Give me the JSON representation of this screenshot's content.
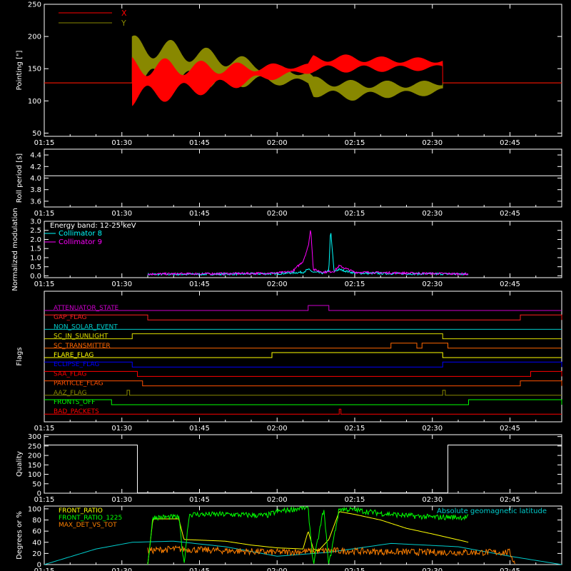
{
  "chart_data": [
    {
      "type": "line",
      "panel": "pointing",
      "ylabel": "Pointing [\"]",
      "ylim": [
        45,
        250
      ],
      "yticks": [
        50,
        100,
        150,
        200,
        250
      ],
      "xticks": [
        "01:15",
        "01:30",
        "01:45",
        "02:00",
        "02:15",
        "02:30",
        "02:45"
      ],
      "xlim_minutes": [
        75,
        166
      ],
      "legend": "top-left",
      "series": [
        {
          "name": "X",
          "color": "#ff0000",
          "baseline": 128,
          "x": [
            "01:15",
            "01:32",
            "01:40",
            "01:50",
            "02:00",
            "02:06",
            "02:07",
            "02:15",
            "02:20",
            "02:25",
            "02:30",
            "02:32",
            "02:55"
          ],
          "mid": [
            128,
            130,
            133,
            138,
            146,
            150,
            158,
            158,
            157,
            157,
            157,
            158,
            128
          ],
          "amp": [
            0,
            40,
            32,
            22,
            12,
            8,
            14,
            14,
            12,
            11,
            10,
            10,
            0
          ]
        },
        {
          "name": "Y",
          "color": "#888800",
          "baseline": 128,
          "x": [
            "01:15",
            "01:32",
            "01:40",
            "01:50",
            "02:00",
            "02:06",
            "02:07",
            "02:15",
            "02:20",
            "02:25",
            "02:30",
            "02:32",
            "02:55"
          ],
          "mid": [
            128,
            160,
            156,
            148,
            140,
            136,
            122,
            116,
            118,
            118,
            120,
            122,
            128
          ],
          "amp": [
            0,
            42,
            38,
            28,
            16,
            12,
            16,
            16,
            14,
            12,
            12,
            12,
            0
          ]
        }
      ]
    },
    {
      "type": "line",
      "panel": "roll",
      "ylabel": "Roll period [s]",
      "ylim": [
        3.5,
        4.5
      ],
      "yticks": [
        "3.6",
        "3.8",
        "4.0",
        "4.2",
        "4.4"
      ],
      "xticks": [
        "01:15",
        "01:30",
        "01:45",
        "02:00",
        "02:15",
        "02:30",
        "02:45"
      ],
      "series": [
        {
          "name": "",
          "color": "#ffffff",
          "value": 4.04
        }
      ]
    },
    {
      "type": "line",
      "panel": "modulation",
      "ylabel": "Normalized modulation",
      "ylim": [
        -0.1,
        3.0
      ],
      "yticks": [
        "0.0",
        "0.5",
        "1.0",
        "1.5",
        "2.0",
        "2.5",
        "3.0"
      ],
      "xticks": [
        "01:15",
        "01:30",
        "01:45",
        "02:00",
        "02:15",
        "02:30",
        "02:45"
      ],
      "legend_title": "Energy band: 12-25 keV",
      "series": [
        {
          "name": "Collimator 8",
          "color": "#00ffff",
          "x": [
            "01:35",
            "01:50",
            "02:00",
            "02:05",
            "02:06",
            "02:07",
            "02:09",
            "02:10",
            "02:10:20",
            "02:11",
            "02:12",
            "02:15",
            "02:25",
            "02:37"
          ],
          "y": [
            0.08,
            0.1,
            0.12,
            0.2,
            0.35,
            0.2,
            0.15,
            0.3,
            2.55,
            0.25,
            0.35,
            0.15,
            0.12,
            0.1
          ]
        },
        {
          "name": "Collimator 9",
          "color": "#ff00ff",
          "x": [
            "01:35",
            "01:50",
            "02:00",
            "02:03",
            "02:05",
            "02:06",
            "02:06:30",
            "02:07",
            "02:09",
            "02:11",
            "02:12",
            "02:15",
            "02:25",
            "02:37"
          ],
          "y": [
            0.1,
            0.12,
            0.15,
            0.25,
            0.8,
            1.6,
            2.6,
            0.35,
            0.2,
            0.25,
            0.55,
            0.2,
            0.15,
            0.1
          ]
        }
      ]
    },
    {
      "type": "step",
      "panel": "flags",
      "ylabel": "Flags",
      "xticks": [
        "01:15",
        "01:30",
        "01:45",
        "02:00",
        "02:15",
        "02:30",
        "02:45"
      ],
      "flags": [
        {
          "name": "ATTENUATOR_STATE",
          "color": "#cc00cc",
          "on": [
            [
              "02:06",
              "02:10"
            ]
          ]
        },
        {
          "name": "GAP_FLAG",
          "color": "#ff2020",
          "on": [
            [
              "01:15",
              "01:35"
            ],
            [
              "02:47",
              "02:55"
            ]
          ]
        },
        {
          "name": "NON_SOLAR_EVENT",
          "color": "#00cccc",
          "on": []
        },
        {
          "name": "SC_IN_SUNLIGHT",
          "color": "#dddd00",
          "on": [
            [
              "01:32",
              "02:32"
            ]
          ]
        },
        {
          "name": "SC_TRANSMITTER",
          "color": "#ff6600",
          "on": [
            [
              "02:22",
              "02:27"
            ],
            [
              "02:28",
              "02:33"
            ]
          ]
        },
        {
          "name": "FLARE_FLAG",
          "color": "#ffff00",
          "on": [
            [
              "01:59",
              "02:32"
            ]
          ]
        },
        {
          "name": "ECLIPSE_FLAG",
          "color": "#0000ff",
          "on": [
            [
              "01:15",
              "01:32"
            ],
            [
              "02:32",
              "02:55"
            ]
          ]
        },
        {
          "name": "SAA_FLAG",
          "color": "#ff0000",
          "on": [
            [
              "01:15",
              "01:33"
            ],
            [
              "02:49",
              "02:55"
            ]
          ]
        },
        {
          "name": "PARTICLE_FLAG",
          "color": "#ff5000",
          "on": [
            [
              "01:15",
              "01:34"
            ],
            [
              "02:47",
              "02:55"
            ]
          ]
        },
        {
          "name": "AAZ_FLAG",
          "color": "#888800",
          "on": [
            [
              "01:31",
              "01:31:30"
            ],
            [
              "02:32",
              "02:32:30"
            ]
          ]
        },
        {
          "name": "FRONTS_OFF",
          "color": "#00ff00",
          "on": [
            [
              "01:15",
              "01:28"
            ],
            [
              "02:37",
              "02:55"
            ]
          ]
        },
        {
          "name": "BAD_PACKETS",
          "color": "#ff0000",
          "on": [
            [
              "02:12",
              "02:12:20"
            ]
          ]
        }
      ]
    },
    {
      "type": "step",
      "panel": "quality",
      "ylabel": "Quality",
      "ylim": [
        0,
        310
      ],
      "yticks": [
        0,
        50,
        100,
        150,
        200,
        250,
        300
      ],
      "xticks": [
        "01:15",
        "01:30",
        "01:45",
        "02:00",
        "02:15",
        "02:30",
        "02:45"
      ],
      "series": [
        {
          "name": "",
          "color": "#ffffff",
          "x": [
            "01:15",
            "01:33",
            "01:33",
            "02:33",
            "02:33",
            "02:55"
          ],
          "y": [
            255,
            255,
            2,
            2,
            255,
            255
          ]
        }
      ]
    },
    {
      "type": "line",
      "panel": "ratios",
      "ylabel": "Degrees or %",
      "ylim": [
        0,
        105
      ],
      "yticks": [
        0,
        20,
        40,
        60,
        80,
        100
      ],
      "xticks": [
        "01:15",
        "01:30",
        "01:45",
        "02:00",
        "02:15",
        "02:30",
        "02:45"
      ],
      "series": [
        {
          "name": "FRONT_RATIO",
          "color": "#ffff00",
          "x": [
            "01:35",
            "01:36",
            "01:41",
            "01:42",
            "01:50",
            "01:55",
            "02:00",
            "02:05",
            "02:06",
            "02:07",
            "02:08",
            "02:10",
            "02:12",
            "02:15",
            "02:20",
            "02:25",
            "02:30",
            "02:37"
          ],
          "y": [
            0,
            82,
            82,
            45,
            42,
            35,
            30,
            28,
            60,
            28,
            25,
            45,
            95,
            90,
            80,
            65,
            55,
            40
          ]
        },
        {
          "name": "FRONT_RATIO_1225",
          "color": "#00ff00",
          "x": [
            "01:35",
            "01:36",
            "01:41",
            "01:42",
            "01:43",
            "01:50",
            "01:58",
            "02:00",
            "02:05",
            "02:06",
            "02:07",
            "02:09",
            "02:10",
            "02:12",
            "02:15",
            "02:20",
            "02:25",
            "02:30",
            "02:37"
          ],
          "y": [
            0,
            85,
            85,
            0,
            90,
            90,
            88,
            95,
            102,
            100,
            0,
            100,
            0,
            100,
            98,
            92,
            88,
            85,
            85
          ]
        },
        {
          "name": "MAX_DET_VS_TOT",
          "color": "#ff8000",
          "x": [
            "01:35",
            "01:40",
            "01:50",
            "02:00",
            "02:10",
            "02:20",
            "02:30",
            "02:45",
            "02:46"
          ],
          "y": [
            25,
            28,
            25,
            22,
            25,
            23,
            22,
            22,
            0
          ]
        },
        {
          "name": "Absolute geomagnetic latitude",
          "color": "#00cccc",
          "x": [
            "01:15",
            "01:25",
            "01:32",
            "01:40",
            "01:50",
            "02:00",
            "02:10",
            "02:22",
            "02:35",
            "02:45",
            "02:55"
          ],
          "y": [
            0,
            28,
            40,
            42,
            32,
            15,
            22,
            38,
            32,
            15,
            0
          ]
        }
      ]
    }
  ]
}
